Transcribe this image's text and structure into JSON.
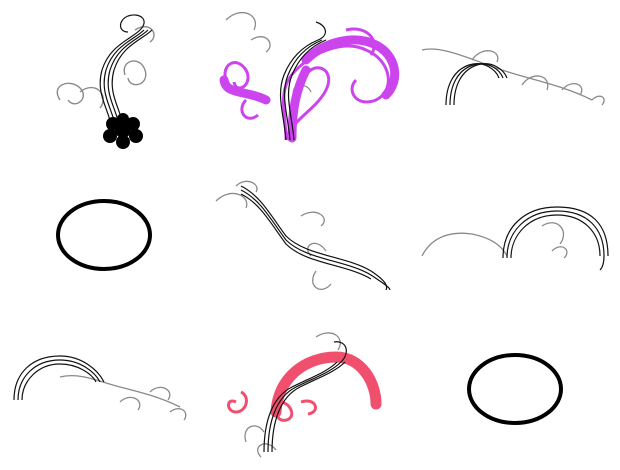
{
  "canvas": {
    "background": "#ffffff"
  },
  "palette": {
    "stroke_dark": "#111111",
    "stroke_gray": "#8a8a8a",
    "magenta": "#cc44ee",
    "pink": "#f0506e",
    "black": "#000000"
  },
  "cells": [
    {
      "id": "swirl-1",
      "kind": "swirl-vine",
      "accent": "flower-icon"
    },
    {
      "id": "swirl-2",
      "kind": "swirl-vine",
      "accent": "magenta-overlay"
    },
    {
      "id": "swirl-3",
      "kind": "swirl-vine",
      "accent": "none"
    },
    {
      "id": "ellipse-1",
      "kind": "ellipse-outline",
      "accent": "none"
    },
    {
      "id": "swirl-4",
      "kind": "swirl-vine",
      "accent": "none"
    },
    {
      "id": "swirl-5",
      "kind": "swirl-arc",
      "accent": "none"
    },
    {
      "id": "swirl-6",
      "kind": "swirl-vine",
      "accent": "none"
    },
    {
      "id": "swirl-7",
      "kind": "swirl-vine",
      "accent": "pink-overlay"
    },
    {
      "id": "ellipse-2",
      "kind": "ellipse-outline",
      "accent": "none"
    }
  ]
}
